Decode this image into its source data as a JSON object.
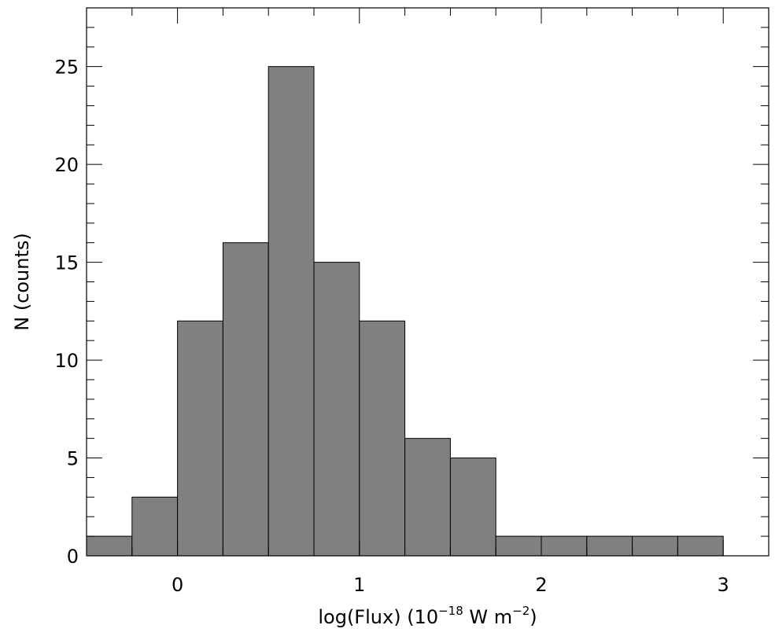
{
  "chart_data": {
    "type": "bar",
    "xlabel": {
      "text": "log(Flux) (10",
      "exp1": "−18",
      "mid": " W m",
      "exp2": "−2",
      "end": ")"
    },
    "ylabel": "N (counts)",
    "xlim": [
      -0.5,
      3.25
    ],
    "ylim": [
      0,
      28
    ],
    "bin_width": 0.25,
    "bins": [
      {
        "x": -0.375,
        "count": 1
      },
      {
        "x": -0.125,
        "count": 3
      },
      {
        "x": 0.125,
        "count": 12
      },
      {
        "x": 0.375,
        "count": 16
      },
      {
        "x": 0.625,
        "count": 25
      },
      {
        "x": 0.875,
        "count": 15
      },
      {
        "x": 1.125,
        "count": 12
      },
      {
        "x": 1.375,
        "count": 6
      },
      {
        "x": 1.625,
        "count": 5
      },
      {
        "x": 1.875,
        "count": 1
      },
      {
        "x": 2.125,
        "count": 1
      },
      {
        "x": 2.375,
        "count": 1
      },
      {
        "x": 2.625,
        "count": 1
      },
      {
        "x": 2.875,
        "count": 1
      }
    ],
    "xticks": [
      "0",
      "1",
      "2",
      "3"
    ],
    "xtick_values": [
      0,
      1,
      2,
      3
    ],
    "yticks": [
      "0",
      "5",
      "10",
      "15",
      "20",
      "25"
    ],
    "ytick_values": [
      0,
      5,
      10,
      15,
      20,
      25
    ],
    "x_minor_step": 0.25,
    "y_minor_step": 1,
    "grid": false,
    "legend": "none",
    "bar_color": "#808080",
    "bar_edge_color": "#000000"
  }
}
